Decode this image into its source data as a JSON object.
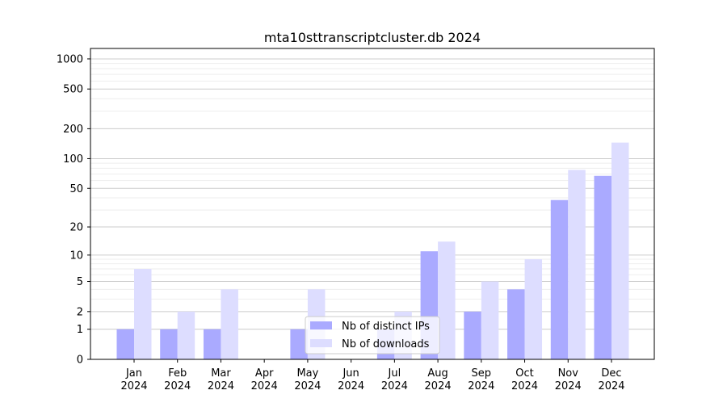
{
  "chart_data": {
    "type": "bar",
    "title": "mta10sttranscriptcluster.db 2024",
    "xlabel": "",
    "ylabel": "",
    "yscale": "symlog (log10(1+y))",
    "ylim": [
      0,
      1300
    ],
    "yticks": [
      0,
      1,
      2,
      5,
      10,
      20,
      50,
      100,
      200,
      500,
      1000
    ],
    "grid": true,
    "legend_position": "bottom-center",
    "categories": [
      [
        "Jan",
        "2024"
      ],
      [
        "Feb",
        "2024"
      ],
      [
        "Mar",
        "2024"
      ],
      [
        "Apr",
        "2024"
      ],
      [
        "May",
        "2024"
      ],
      [
        "Jun",
        "2024"
      ],
      [
        "Jul",
        "2024"
      ],
      [
        "Aug",
        "2024"
      ],
      [
        "Sep",
        "2024"
      ],
      [
        "Oct",
        "2024"
      ],
      [
        "Nov",
        "2024"
      ],
      [
        "Dec",
        "2024"
      ]
    ],
    "series": [
      {
        "name": "Nb of distinct IPs",
        "color": "#aaaaff",
        "values": [
          1,
          1,
          1,
          0,
          1,
          0,
          1,
          11,
          2,
          4,
          38,
          67
        ]
      },
      {
        "name": "Nb of downloads",
        "color": "#ddddff",
        "values": [
          7,
          2,
          4,
          0,
          4,
          0,
          2,
          14,
          5,
          9,
          77,
          145
        ]
      }
    ]
  }
}
